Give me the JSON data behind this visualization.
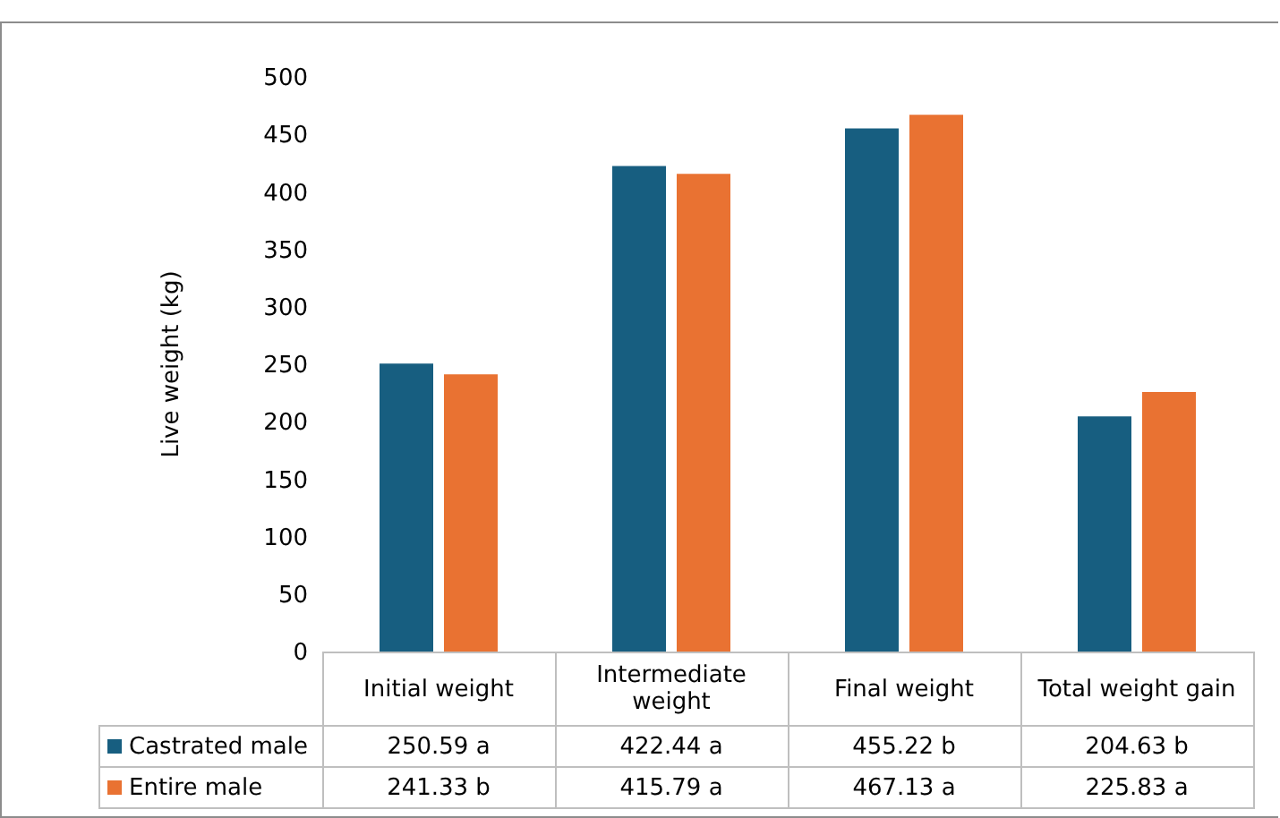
{
  "chart_data": {
    "type": "bar",
    "ylabel": "Live weight (kg)",
    "categories": [
      "Initial weight",
      "Intermediate weight",
      "Final weight",
      "Total weight gain"
    ],
    "series": [
      {
        "name": "Castrated male",
        "color": "#175e80",
        "values": [
          250.59,
          422.44,
          455.22,
          204.63
        ],
        "value_labels": [
          "250.59 a",
          "422.44 a",
          "455.22 b",
          "204.63 b"
        ]
      },
      {
        "name": "Entire male",
        "color": "#e97232",
        "values": [
          241.33,
          415.79,
          467.13,
          225.83
        ],
        "value_labels": [
          "241.33 b",
          "415.79 a",
          "467.13 a",
          "225.83 a"
        ]
      }
    ],
    "ylim": [
      0,
      500
    ],
    "yticks": [
      0,
      50,
      100,
      150,
      200,
      250,
      300,
      350,
      400,
      450,
      500
    ],
    "legend": "bottom left"
  }
}
